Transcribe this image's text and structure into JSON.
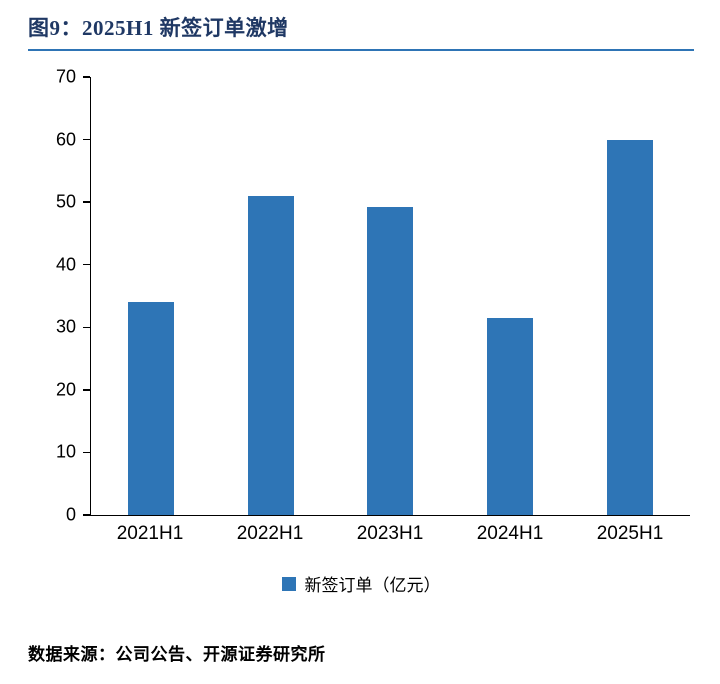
{
  "header": {
    "title": "图9：2025H1 新签订单激增",
    "title_color": "#1f3864",
    "rule_color": "#2e74b5"
  },
  "chart_data": {
    "type": "bar",
    "title": "图9：2025H1 新签订单激增",
    "categories": [
      "2021H1",
      "2022H1",
      "2023H1",
      "2024H1",
      "2025H1"
    ],
    "values": [
      34,
      51,
      49.3,
      31.5,
      60
    ],
    "series_name": "新签订单（亿元）",
    "xlabel": "",
    "ylabel": "",
    "ylim": [
      0,
      70
    ],
    "ytick_step": 10,
    "yticks": [
      0,
      10,
      20,
      30,
      40,
      50,
      60,
      70
    ],
    "bar_color": "#2e75b6",
    "grid": false,
    "legend_position": "bottom"
  },
  "legend": {
    "label": "新签订单（亿元）",
    "swatch_color": "#2e75b6"
  },
  "footer": {
    "source": "数据来源：公司公告、开源证券研究所"
  }
}
